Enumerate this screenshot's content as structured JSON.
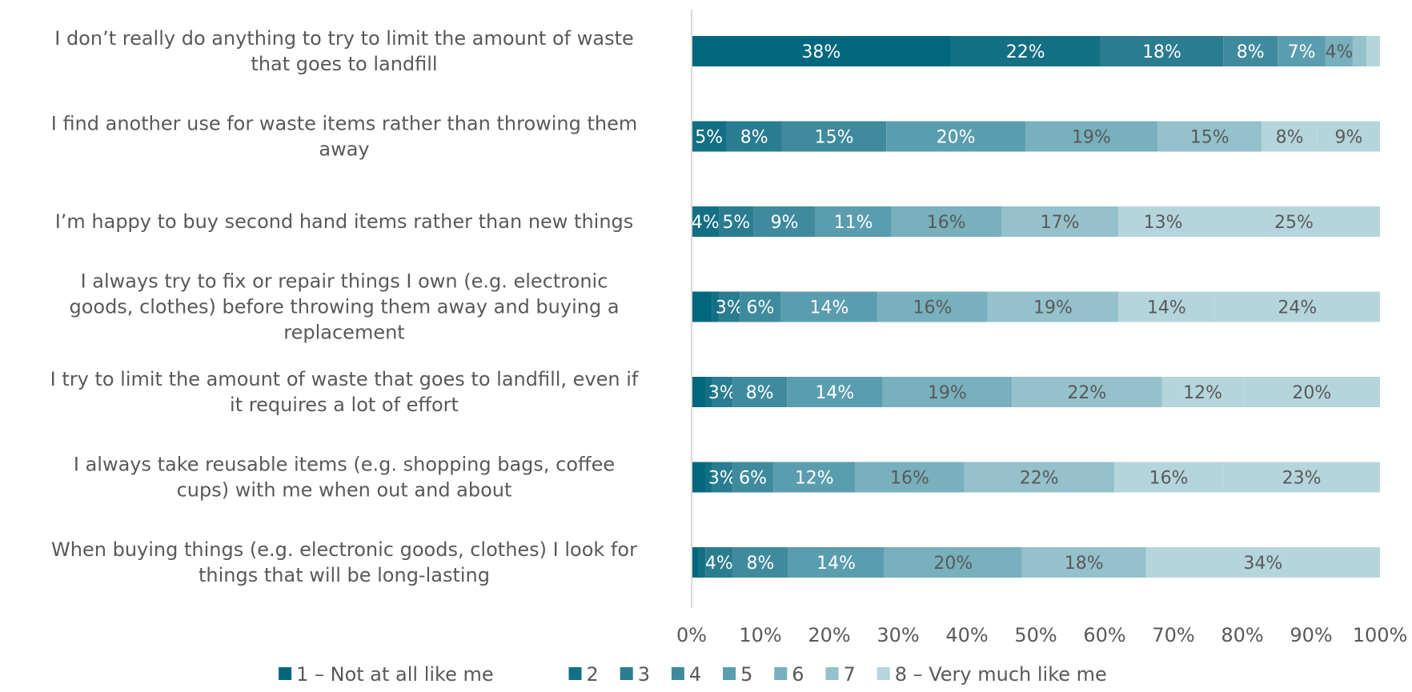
{
  "chart_data": {
    "type": "bar",
    "orientation": "horizontal",
    "stacked": "percent",
    "categories": [
      [
        "I don’t really do anything to try to limit the amount of waste",
        "that goes to landfill"
      ],
      [
        "I find another use for waste items rather than throwing them",
        "away"
      ],
      [
        "I’m happy to buy second hand items rather than new things"
      ],
      [
        "I always try to fix or repair things I own (e.g. electronic",
        "goods, clothes) before throwing them away and buying a",
        "replacement"
      ],
      [
        "I try to limit the amount of waste that goes to landfill, even if",
        "it requires a lot of effort"
      ],
      [
        "I always take reusable items (e.g. shopping bags, coffee",
        "cups) with me when out and about"
      ],
      [
        "When buying things (e.g. electronic goods, clothes) I look for",
        "things that will be long-lasting"
      ]
    ],
    "series": [
      {
        "name": "1 – Not at all like me",
        "color": "#00677f",
        "values": [
          38,
          0,
          0,
          3,
          2,
          2,
          1
        ],
        "labels": [
          "38%",
          "",
          "",
          "",
          "",
          "",
          ""
        ]
      },
      {
        "name": "2",
        "color": "#136f84",
        "values": [
          22,
          5,
          4,
          1,
          1,
          1,
          1
        ],
        "labels": [
          "22%",
          "5%",
          "4%",
          "",
          "",
          "",
          ""
        ]
      },
      {
        "name": "3",
        "color": "#2a7c90",
        "values": [
          18,
          8,
          5,
          3,
          3,
          3,
          4
        ],
        "labels": [
          "18%",
          "8%",
          "5%",
          "3%",
          "3%",
          "3%",
          "4%"
        ]
      },
      {
        "name": "4",
        "color": "#3f8b9d",
        "values": [
          8,
          15,
          9,
          6,
          8,
          6,
          8
        ],
        "labels": [
          "8%",
          "15%",
          "9%",
          "6%",
          "8%",
          "6%",
          "8%"
        ]
      },
      {
        "name": "5",
        "color": "#5a9dae",
        "values": [
          7,
          20,
          11,
          14,
          14,
          12,
          14
        ],
        "labels": [
          "7%",
          "20%",
          "11%",
          "14%",
          "14%",
          "12%",
          "14%"
        ]
      },
      {
        "name": "6",
        "color": "#78b0bd",
        "values": [
          4,
          19,
          16,
          16,
          19,
          16,
          20
        ],
        "labels": [
          "4%",
          "19%",
          "16%",
          "16%",
          "19%",
          "16%",
          "20%"
        ]
      },
      {
        "name": "7",
        "color": "#94c1cb",
        "values": [
          2,
          15,
          17,
          19,
          22,
          22,
          18
        ],
        "labels": [
          "",
          "15%",
          "17%",
          "19%",
          "22%",
          "22%",
          "18%"
        ]
      },
      {
        "name": "8 – Very much like me",
        "color": "#b5d5dc",
        "values": [
          2,
          8,
          13,
          14,
          12,
          16,
          34
        ],
        "labels": [
          "",
          "8%",
          "13%",
          "14%",
          "12%",
          "16%",
          "34%"
        ]
      },
      {
        "name": "",
        "color": "#b5d5dc",
        "values": [
          0,
          9,
          25,
          24,
          20,
          23,
          0
        ],
        "labels": [
          "",
          "9%",
          "25%",
          "24%",
          "20%",
          "23%",
          ""
        ]
      }
    ],
    "legend_series": [
      "1 – Not at all like me",
      "2",
      "3",
      "4",
      "5",
      "6",
      "7",
      "8 – Very much like me"
    ],
    "xlim": [
      0,
      100
    ],
    "xticks": [
      "0%",
      "10%",
      "20%",
      "30%",
      "40%",
      "50%",
      "60%",
      "70%",
      "80%",
      "90%",
      "100%"
    ],
    "legend_position": "bottom",
    "grid": false
  }
}
